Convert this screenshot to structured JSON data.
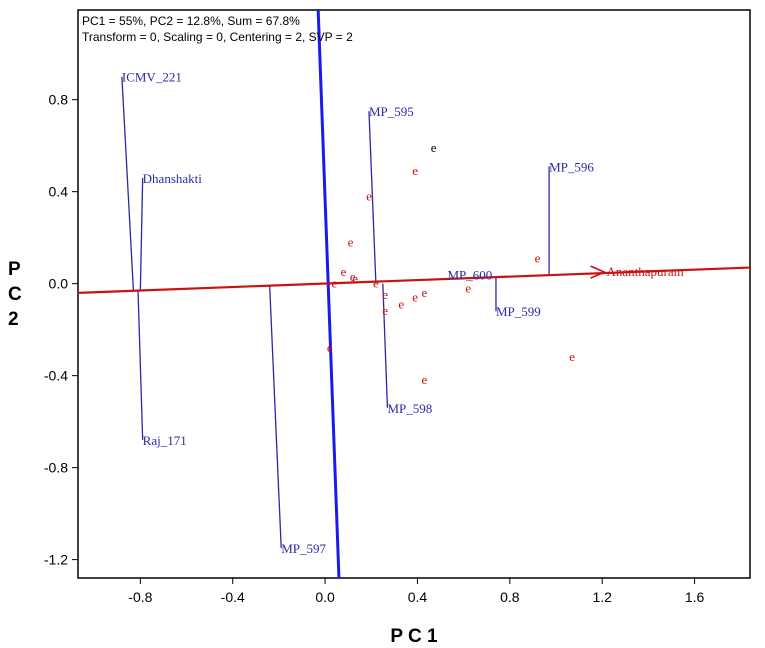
{
  "info": {
    "line1": "PC1 = 55%, PC2 = 12.8%, Sum = 67.8%",
    "line2": "Transform = 0, Scaling = 0, Centering = 2, SVP = 2"
  },
  "chart_data": {
    "type": "scatter",
    "xlabel": "P C 1",
    "ylabel_lines": [
      "P",
      "C",
      "2"
    ],
    "xlim": [
      -1.07,
      1.84
    ],
    "ylim": [
      -1.28,
      1.19
    ],
    "xticks": [
      -0.8,
      -0.4,
      0.0,
      0.4,
      0.8,
      1.2,
      1.6
    ],
    "xtick_labels": [
      "-0.8",
      "-0.4",
      "0.0",
      "0.4",
      "0.8",
      "1.2",
      "1.6"
    ],
    "yticks": [
      0.8,
      0.4,
      0.0,
      -0.4,
      -0.8,
      -1.2
    ],
    "ytick_labels": [
      "0.8",
      "0.4",
      "0.0",
      "-0.4",
      "-0.8",
      "-1.2"
    ],
    "genotype_color": "#2a2aa8",
    "environment_color": "#cc1111",
    "axis_line_color": "#1a1aee",
    "env_vector": {
      "name": "Ananthapuram",
      "x": 1.21,
      "y": 0.05,
      "line_from": [
        -1.07,
        -0.04
      ],
      "line_to": [
        1.84,
        0.07
      ]
    },
    "ati_line": {
      "from": [
        -0.03,
        1.19
      ],
      "to": [
        0.06,
        -1.28
      ]
    },
    "genotypes": [
      {
        "name": "ICMV_221",
        "x": -0.88,
        "y": 0.9,
        "foot": [
          -0.83,
          -0.03
        ]
      },
      {
        "name": "Dhanshakti",
        "x": -0.79,
        "y": 0.46,
        "foot": [
          -0.8,
          -0.03
        ]
      },
      {
        "name": "Raj_171",
        "x": -0.79,
        "y": -0.68,
        "foot": [
          -0.81,
          -0.03
        ]
      },
      {
        "name": "MP_597",
        "x": -0.19,
        "y": -1.15,
        "foot": [
          -0.24,
          -0.01
        ]
      },
      {
        "name": "MP_595",
        "x": 0.19,
        "y": 0.75,
        "foot": [
          0.22,
          0.0
        ]
      },
      {
        "name": "MP_598",
        "x": 0.27,
        "y": -0.54,
        "foot": [
          0.25,
          0.0
        ]
      },
      {
        "name": "MP_596",
        "x": 0.97,
        "y": 0.51,
        "foot": [
          0.97,
          0.04
        ]
      },
      {
        "name": "MP_600",
        "x": 0.53,
        "y": 0.04,
        "foot": null
      },
      {
        "name": "MP_599",
        "x": 0.74,
        "y": -0.12,
        "foot": [
          0.74,
          0.03
        ]
      }
    ],
    "unlabeled_points": [
      {
        "label": "e",
        "x": 0.47,
        "y": 0.59,
        "color": "#000000"
      },
      {
        "label": "e",
        "x": 0.39,
        "y": 0.49
      },
      {
        "label": "e",
        "x": 0.19,
        "y": 0.38
      },
      {
        "label": "e",
        "x": 0.11,
        "y": 0.18
      },
      {
        "label": "e",
        "x": 0.08,
        "y": 0.05
      },
      {
        "label": "e",
        "x": 0.12,
        "y": 0.03
      },
      {
        "label": "e",
        "x": 0.13,
        "y": 0.02
      },
      {
        "label": "e",
        "x": 0.04,
        "y": 0.0
      },
      {
        "label": "e",
        "x": 0.22,
        "y": 0.0
      },
      {
        "label": "e",
        "x": 0.26,
        "y": -0.05
      },
      {
        "label": "e",
        "x": 0.26,
        "y": -0.12
      },
      {
        "label": "e",
        "x": 0.33,
        "y": -0.09
      },
      {
        "label": "e",
        "x": 0.39,
        "y": -0.06
      },
      {
        "label": "e",
        "x": 0.43,
        "y": -0.04
      },
      {
        "label": "e",
        "x": 0.62,
        "y": -0.02
      },
      {
        "label": "e",
        "x": 0.92,
        "y": 0.11
      },
      {
        "label": "e",
        "x": 0.02,
        "y": -0.28
      },
      {
        "label": "e",
        "x": 0.43,
        "y": -0.42
      },
      {
        "label": "e",
        "x": 1.07,
        "y": -0.32
      }
    ]
  }
}
